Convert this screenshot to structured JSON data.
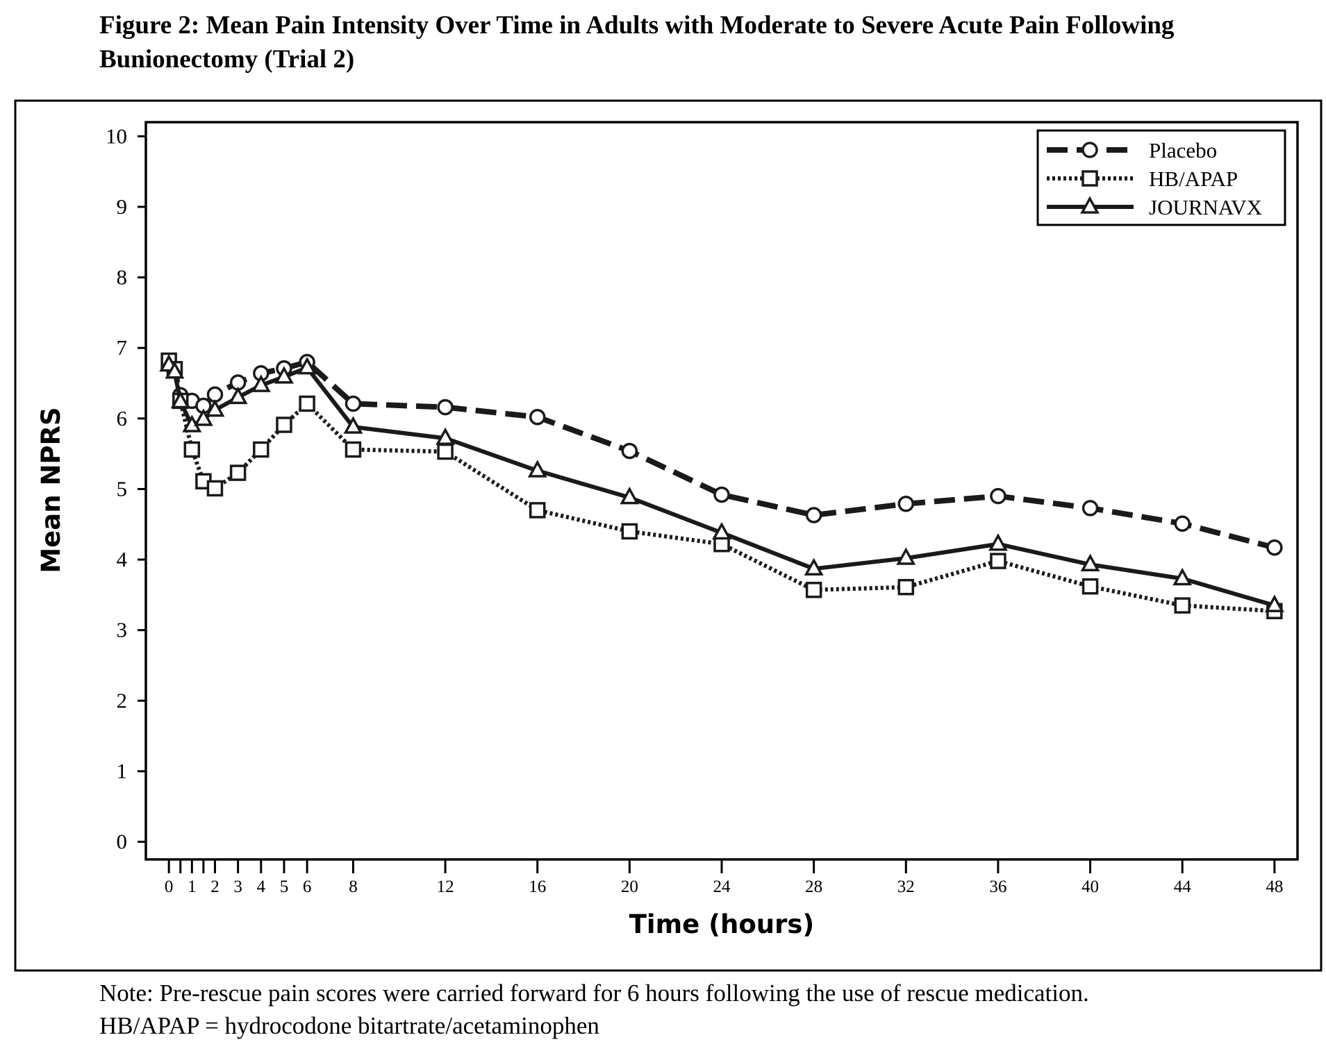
{
  "figure": {
    "title_line1": "Figure 2: Mean Pain Intensity Over Time in Adults with Moderate to Severe Acute Pain Following",
    "title_line2": "Bunionectomy (Trial 2)",
    "note_line1": "Note: Pre-rescue pain scores were carried forward for 6 hours following the use of rescue medication.",
    "note_line2": "HB/APAP = hydrocodone bitartrate/acetaminophen"
  },
  "chart_data": {
    "type": "line",
    "title": "Figure 2: Mean Pain Intensity Over Time in Adults with Moderate to Severe Acute Pain Following Bunionectomy (Trial 2)",
    "xlabel": "Time (hours)",
    "ylabel": "Mean NPRS",
    "xlim": [
      -1,
      49
    ],
    "ylim": [
      -0.25,
      10.2
    ],
    "x_ticks": [
      0,
      0.5,
      1,
      1.5,
      2,
      3,
      4,
      5,
      6,
      8,
      12,
      16,
      20,
      24,
      28,
      32,
      36,
      40,
      44,
      48
    ],
    "x_tick_labels": [
      {
        "x": 0,
        "label": "0"
      },
      {
        "x": 1,
        "label": "1"
      },
      {
        "x": 2,
        "label": "2"
      },
      {
        "x": 3,
        "label": "3"
      },
      {
        "x": 4,
        "label": "4"
      },
      {
        "x": 5,
        "label": "5"
      },
      {
        "x": 6,
        "label": "6"
      },
      {
        "x": 8,
        "label": "8"
      },
      {
        "x": 12,
        "label": "12"
      },
      {
        "x": 16,
        "label": "16"
      },
      {
        "x": 20,
        "label": "20"
      },
      {
        "x": 24,
        "label": "24"
      },
      {
        "x": 28,
        "label": "28"
      },
      {
        "x": 32,
        "label": "32"
      },
      {
        "x": 36,
        "label": "36"
      },
      {
        "x": 40,
        "label": "40"
      },
      {
        "x": 44,
        "label": "44"
      },
      {
        "x": 48,
        "label": "48"
      }
    ],
    "y_ticks": [
      0,
      1,
      2,
      3,
      4,
      5,
      6,
      7,
      8,
      9,
      10
    ],
    "legend_position": "top-right",
    "series": [
      {
        "name": "Placebo",
        "style": "dashed",
        "marker": "circle",
        "color": "#1a1a1a",
        "x": [
          0,
          0.25,
          0.5,
          1,
          1.5,
          2,
          3,
          4,
          5,
          6,
          8,
          12,
          16,
          20,
          24,
          28,
          32,
          36,
          40,
          44,
          48
        ],
        "y": [
          6.77,
          6.68,
          6.33,
          6.25,
          6.18,
          6.34,
          6.51,
          6.64,
          6.71,
          6.8,
          6.21,
          6.16,
          6.02,
          5.54,
          4.92,
          4.63,
          4.79,
          4.9,
          4.73,
          4.51,
          4.17
        ]
      },
      {
        "name": "HB/APAP",
        "style": "dotted",
        "marker": "square",
        "color": "#1a1a1a",
        "x": [
          0,
          0.25,
          0.5,
          1,
          1.5,
          2,
          3,
          4,
          5,
          6,
          8,
          12,
          16,
          20,
          24,
          28,
          32,
          36,
          40,
          44,
          48
        ],
        "y": [
          6.82,
          6.7,
          6.25,
          5.56,
          5.11,
          5.01,
          5.23,
          5.56,
          5.91,
          6.21,
          5.56,
          5.53,
          4.7,
          4.4,
          4.22,
          3.57,
          3.61,
          3.98,
          3.62,
          3.35,
          3.27
        ]
      },
      {
        "name": "JOURNAVX",
        "style": "solid",
        "marker": "triangle",
        "color": "#1a1a1a",
        "x": [
          0,
          0.25,
          0.5,
          1,
          1.5,
          2,
          3,
          4,
          5,
          6,
          8,
          12,
          16,
          20,
          24,
          28,
          32,
          36,
          40,
          44,
          48
        ],
        "y": [
          6.76,
          6.66,
          6.24,
          5.9,
          5.99,
          6.12,
          6.3,
          6.47,
          6.59,
          6.72,
          5.88,
          5.72,
          5.26,
          4.88,
          4.38,
          3.87,
          4.02,
          4.22,
          3.93,
          3.73,
          3.35
        ]
      }
    ]
  }
}
